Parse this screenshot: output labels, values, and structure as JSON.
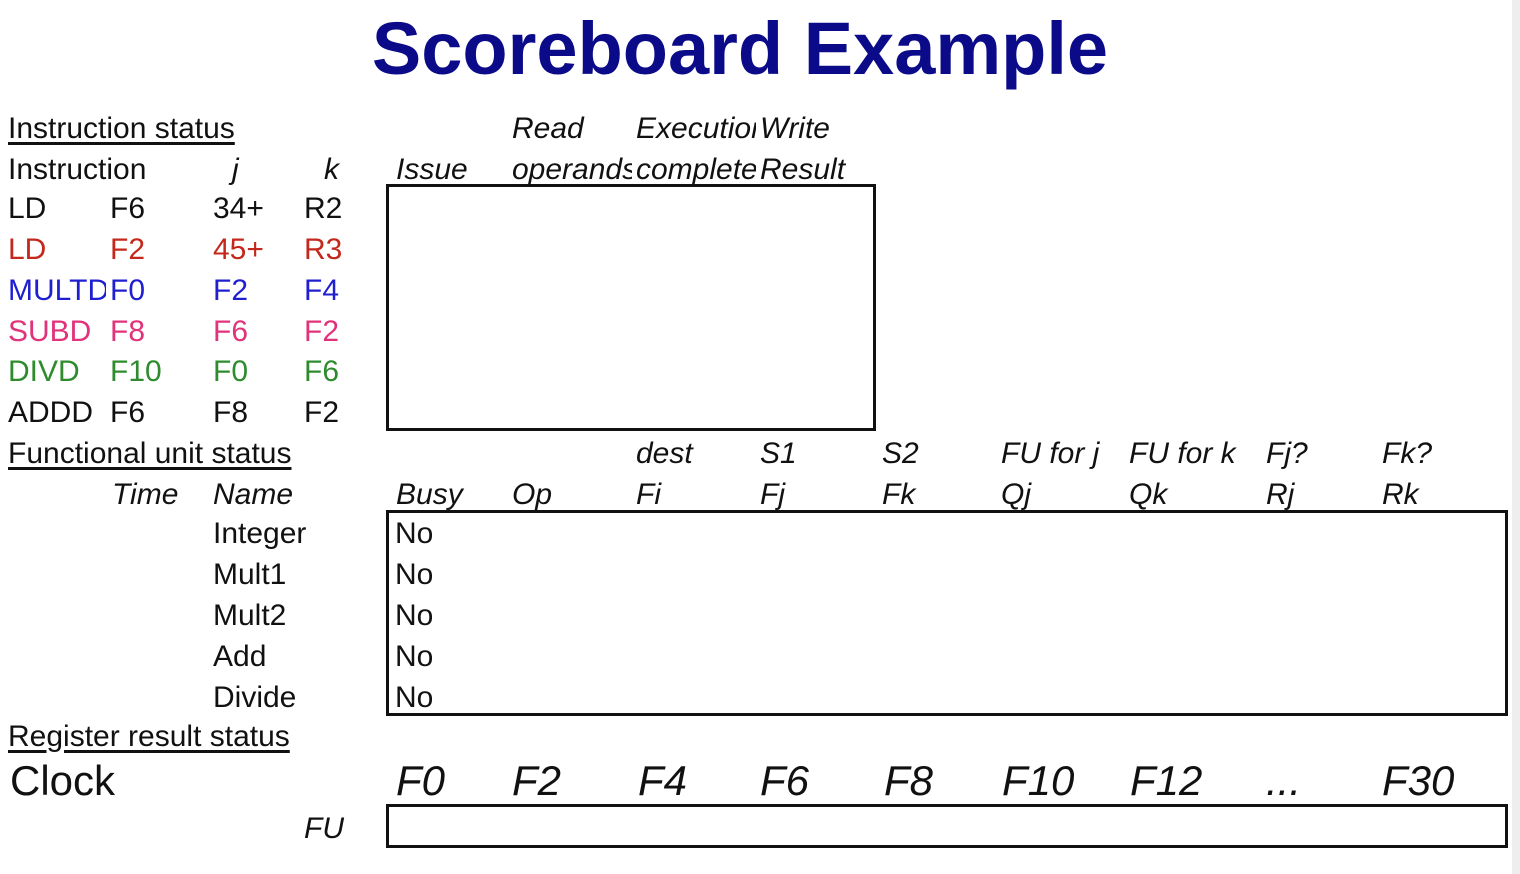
{
  "title": "Scoreboard Example",
  "colors": {
    "title": "#0b0b8a",
    "black": "#111111",
    "red": "#c4271b",
    "blue": "#1f1fd1",
    "pink": "#e0337a",
    "green": "#2e8b2e"
  },
  "instruction_status": {
    "heading": "Instruction status",
    "col_instruction": "Instruction",
    "col_j": "j",
    "col_k": "k",
    "col_issue": "Issue",
    "col_read_top": "Read",
    "col_read_bottom": "operands",
    "col_exec_top": "Execution",
    "col_exec_bottom": "complete",
    "col_write_top": "Write",
    "col_write_bottom": "Result",
    "rows": [
      {
        "op": "LD",
        "dest": "F6",
        "j": "34+",
        "k": "R2",
        "color": "#111111"
      },
      {
        "op": "LD",
        "dest": "F2",
        "j": "45+",
        "k": "R3",
        "color": "#c4271b"
      },
      {
        "op": "MULTD",
        "dest": "F0",
        "j": "F2",
        "k": "F4",
        "color": "#1f1fd1"
      },
      {
        "op": "SUBD",
        "dest": "F8",
        "j": "F6",
        "k": "F2",
        "color": "#e0337a"
      },
      {
        "op": "DIVD",
        "dest": "F10",
        "j": "F0",
        "k": "F6",
        "color": "#2e8b2e"
      },
      {
        "op": "ADDD",
        "dest": "F6",
        "j": "F8",
        "k": "F2",
        "color": "#111111"
      }
    ]
  },
  "functional_unit_status": {
    "heading": "Functional unit status",
    "top_headers": [
      "dest",
      "S1",
      "S2",
      "FU for j",
      "FU for k",
      "Fj?",
      "Fk?"
    ],
    "col_time": "Time",
    "col_name": "Name",
    "bottom_headers": [
      "Busy",
      "Op",
      "Fi",
      "Fj",
      "Fk",
      "Qj",
      "Qk",
      "Rj",
      "Rk"
    ],
    "rows": [
      {
        "name": "Integer",
        "busy": "No"
      },
      {
        "name": "Mult1",
        "busy": "No"
      },
      {
        "name": "Mult2",
        "busy": "No"
      },
      {
        "name": "Add",
        "busy": "No"
      },
      {
        "name": "Divide",
        "busy": "No"
      }
    ]
  },
  "register_result_status": {
    "heading": "Register result status",
    "clock_label": "Clock",
    "fu_label": "FU",
    "registers": [
      "F0",
      "F2",
      "F4",
      "F6",
      "F8",
      "F10",
      "F12",
      "...",
      "F30"
    ]
  }
}
